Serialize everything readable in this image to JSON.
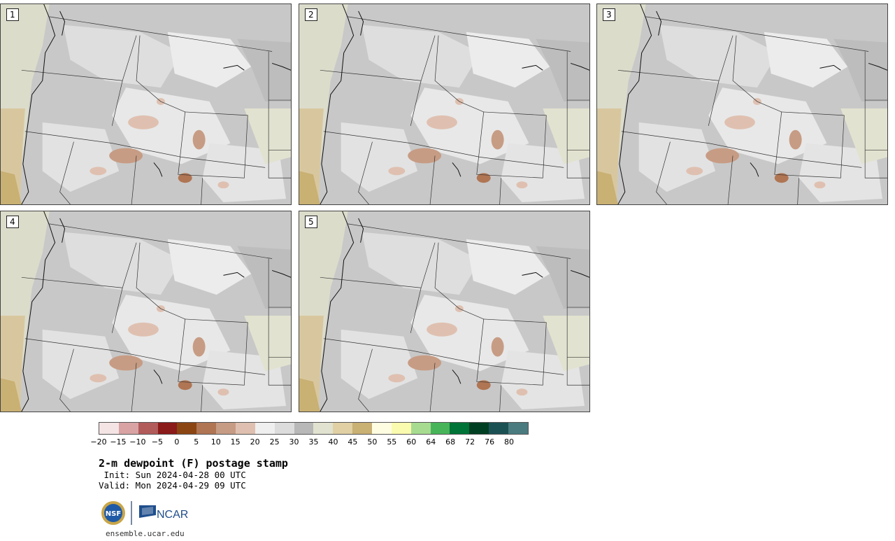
{
  "panels": [
    {
      "label": "1"
    },
    {
      "label": "2"
    },
    {
      "label": "3"
    },
    {
      "label": "4"
    },
    {
      "label": "5"
    }
  ],
  "colorbar": {
    "colors": [
      "#f4e4e4",
      "#d9a3a3",
      "#b25b5b",
      "#8b1a1a",
      "#8b4513",
      "#b07553",
      "#c79c84",
      "#dfc0b0",
      "#efefef",
      "#dcdcdc",
      "#b8b8b8",
      "#e2e2d0",
      "#e0d0a4",
      "#c9b073",
      "#fffde1",
      "#fbfbb0",
      "#a7dc90",
      "#47b45a",
      "#007337",
      "#013f22",
      "#1c5154",
      "#4a7b7e"
    ],
    "ticks": [
      "−20",
      "−15",
      "−10",
      "−5",
      "0",
      "5",
      "10",
      "15",
      "20",
      "25",
      "30",
      "35",
      "40",
      "45",
      "50",
      "55",
      "60",
      "64",
      "68",
      "72",
      "76",
      "80"
    ]
  },
  "title": "2-m dewpoint (F) postage stamp",
  "init": " Init: Sun 2024-04-28 00 UTC",
  "valid": "Valid: Mon 2024-04-29 09 UTC",
  "logo": {
    "nsf_text": "NSF",
    "ncar_text": "NCAR"
  },
  "url": "ensemble.ucar.edu"
}
